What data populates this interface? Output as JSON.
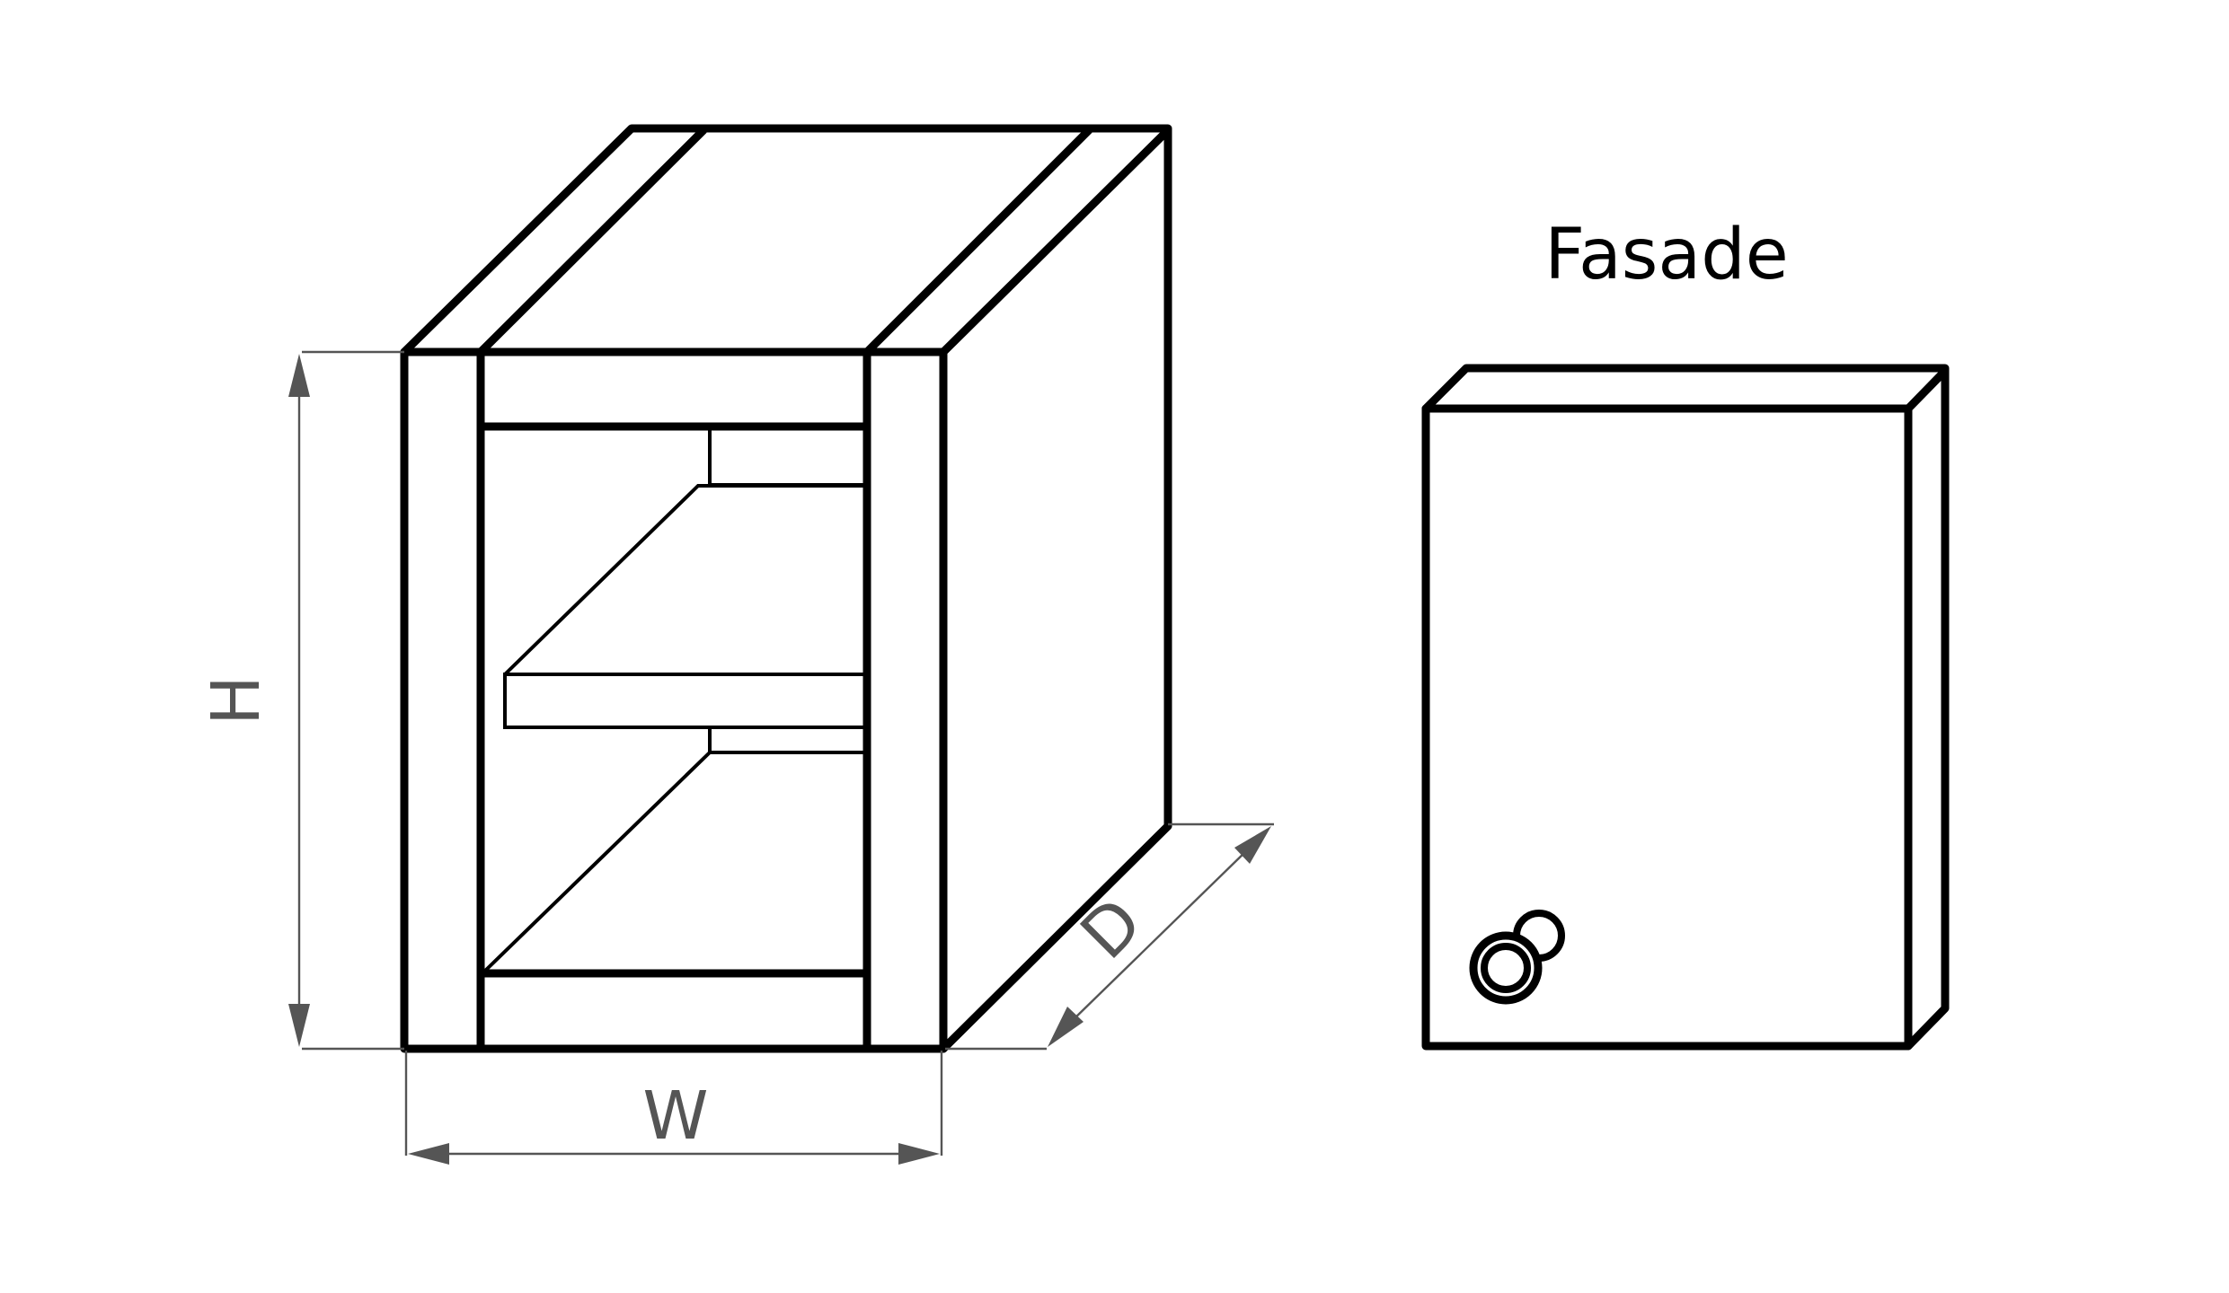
{
  "labels": {
    "height": "H",
    "width": "W",
    "depth": "D",
    "facade": "Fasade"
  },
  "colors": {
    "outline": "#000000",
    "dimension": "#555555",
    "background": "#ffffff"
  }
}
